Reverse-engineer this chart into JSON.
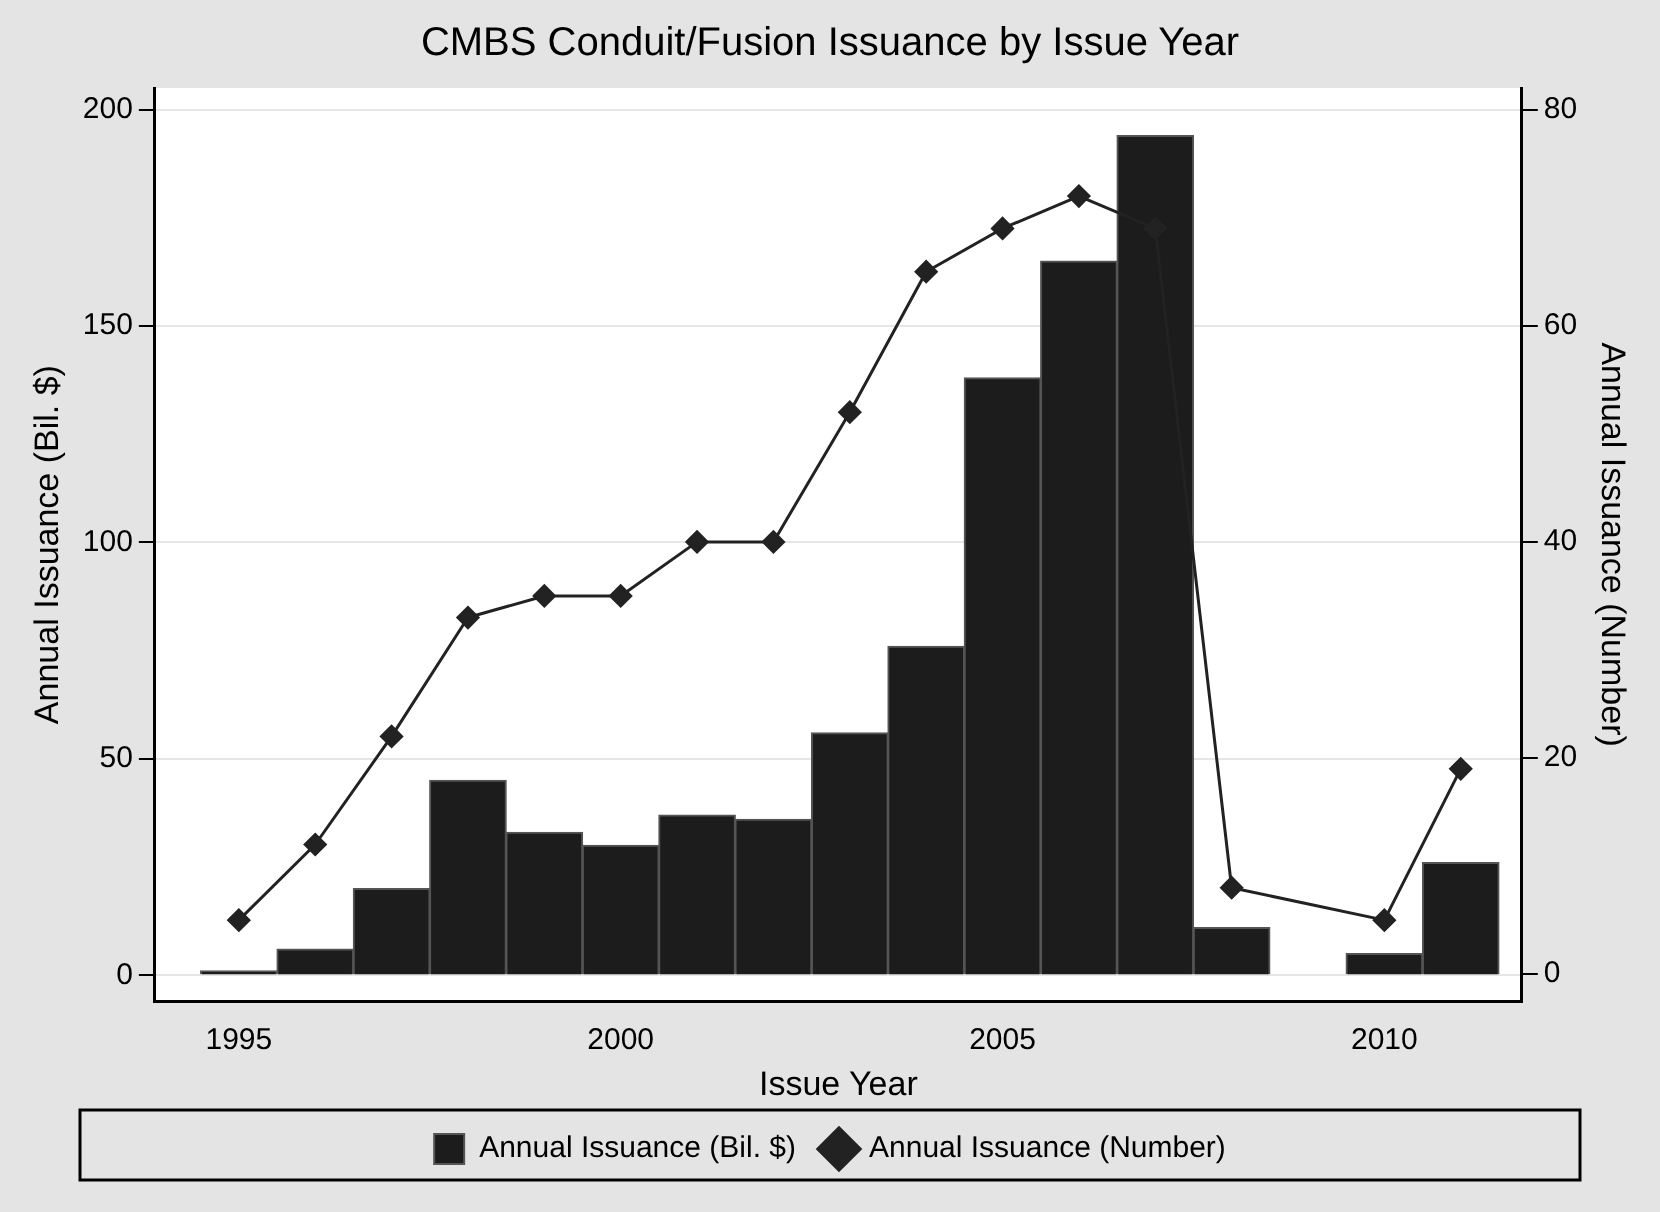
{
  "chart_data": {
    "type": "bar",
    "title": "CMBS Conduit/Fusion Issuance by Issue Year",
    "xlabel": "Issue Year",
    "ylabel": "Annual Issuance (Bil. $)",
    "y2label": "Annual Issuance (Number)",
    "x": [
      1995,
      1996,
      1997,
      1998,
      1999,
      2000,
      2001,
      2002,
      2003,
      2004,
      2005,
      2006,
      2007,
      2008,
      2009,
      2010,
      2011
    ],
    "xlim": [
      1993.9,
      2011.8
    ],
    "xticks": [
      1995,
      2000,
      2005,
      2010
    ],
    "ylim": [
      -6,
      205
    ],
    "yticks": [
      0,
      50,
      100,
      150,
      200
    ],
    "y2lim": [
      -2.5,
      82
    ],
    "y2ticks": [
      0,
      20,
      40,
      60,
      80
    ],
    "series": [
      {
        "name": "Annual Issuance (Bil. $)",
        "color": "#1c1c1c",
        "values": [
          1,
          6,
          20,
          45,
          33,
          30,
          37,
          36,
          56,
          76,
          138,
          165,
          194,
          11,
          null,
          5,
          26
        ]
      },
      {
        "name": "Annual Issuance (Number)",
        "type": "line",
        "axis": "y2",
        "color": "#222222",
        "marker": "diamond",
        "x": [
          1995,
          1996,
          1997,
          1998,
          1999,
          2000,
          2001,
          2002,
          2003,
          2004,
          2005,
          2006,
          2007,
          2008,
          2010,
          2011
        ],
        "values": [
          5,
          12,
          22,
          33,
          35,
          35,
          40,
          40,
          52,
          65,
          69,
          72,
          69,
          8,
          5,
          19
        ]
      }
    ],
    "grid": "y",
    "legend": "bottom"
  }
}
